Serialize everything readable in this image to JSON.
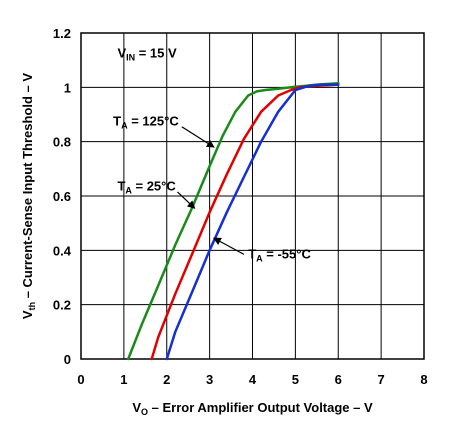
{
  "chart_data": {
    "type": "line",
    "title": "",
    "xlabel": {
      "main": "V",
      "sub": "O",
      "rest": " – Error Amplifier Output Voltage – V"
    },
    "ylabel": {
      "main": "V",
      "sub": "th",
      "rest": " – Current-Sense Input Threshold – V"
    },
    "xlim": [
      0,
      8
    ],
    "ylim": [
      0,
      1.2
    ],
    "xticks": [
      0,
      1,
      2,
      3,
      4,
      5,
      6,
      7,
      8
    ],
    "xtick_labels": [
      "0",
      "1",
      "2",
      "3",
      "4",
      "5",
      "6",
      "7",
      "8"
    ],
    "yticks": [
      0,
      0.2,
      0.4,
      0.6,
      0.8,
      1,
      1.2
    ],
    "ytick_labels": [
      "0",
      "0.2",
      "0.4",
      "0.6",
      "0.8",
      "1",
      "1.2"
    ],
    "grid": true,
    "series": [
      {
        "name": "T_A = 125°C",
        "color": "#1a8a1a",
        "x": [
          1.1,
          1.4,
          1.8,
          2.2,
          2.6,
          3.0,
          3.3,
          3.6,
          3.9,
          4.1,
          4.3,
          4.6,
          4.9,
          5.2,
          5.5,
          6.0
        ],
        "y": [
          0.0,
          0.12,
          0.27,
          0.42,
          0.56,
          0.71,
          0.82,
          0.91,
          0.97,
          0.985,
          0.99,
          0.995,
          1.0,
          1.005,
          1.01,
          1.015
        ]
      },
      {
        "name": "T_A = 25°C",
        "color": "#e00000",
        "x": [
          1.65,
          1.8,
          2.2,
          2.6,
          3.0,
          3.4,
          3.8,
          4.2,
          4.6,
          4.9,
          5.1,
          5.4,
          6.0
        ],
        "y": [
          0.0,
          0.08,
          0.24,
          0.39,
          0.54,
          0.68,
          0.81,
          0.91,
          0.97,
          0.99,
          1.0,
          1.005,
          1.01
        ]
      },
      {
        "name": "T_A = -55°C",
        "color": "#1530d0",
        "x": [
          2.0,
          2.2,
          2.6,
          3.0,
          3.4,
          3.8,
          4.2,
          4.6,
          5.0,
          5.3,
          5.6,
          6.0
        ],
        "y": [
          0.0,
          0.1,
          0.25,
          0.4,
          0.54,
          0.67,
          0.8,
          0.91,
          0.99,
          1.005,
          1.01,
          1.01
        ]
      }
    ],
    "annotations": [
      {
        "id": "vin",
        "main": "V",
        "sub": "IN",
        "rest": " = 15 V",
        "x": 0.85,
        "y": 1.11,
        "arrow": null
      },
      {
        "id": "t125",
        "main": "T",
        "sub": "A",
        "rest": " = 125°C",
        "x": 0.75,
        "y": 0.86,
        "arrow": {
          "from": [
            2.35,
            0.855
          ],
          "to": [
            3.1,
            0.78
          ]
        }
      },
      {
        "id": "t25",
        "main": "T",
        "sub": "A",
        "rest": " = 25°C",
        "x": 0.85,
        "y": 0.62,
        "arrow": {
          "from": [
            2.25,
            0.615
          ],
          "to": [
            2.65,
            0.555
          ]
        }
      },
      {
        "id": "tm55",
        "main": "T",
        "sub": "A",
        "rest": " = -55°C",
        "x": 3.9,
        "y": 0.37,
        "arrow": {
          "from": [
            3.8,
            0.385
          ],
          "to": [
            3.1,
            0.445
          ]
        }
      }
    ]
  }
}
